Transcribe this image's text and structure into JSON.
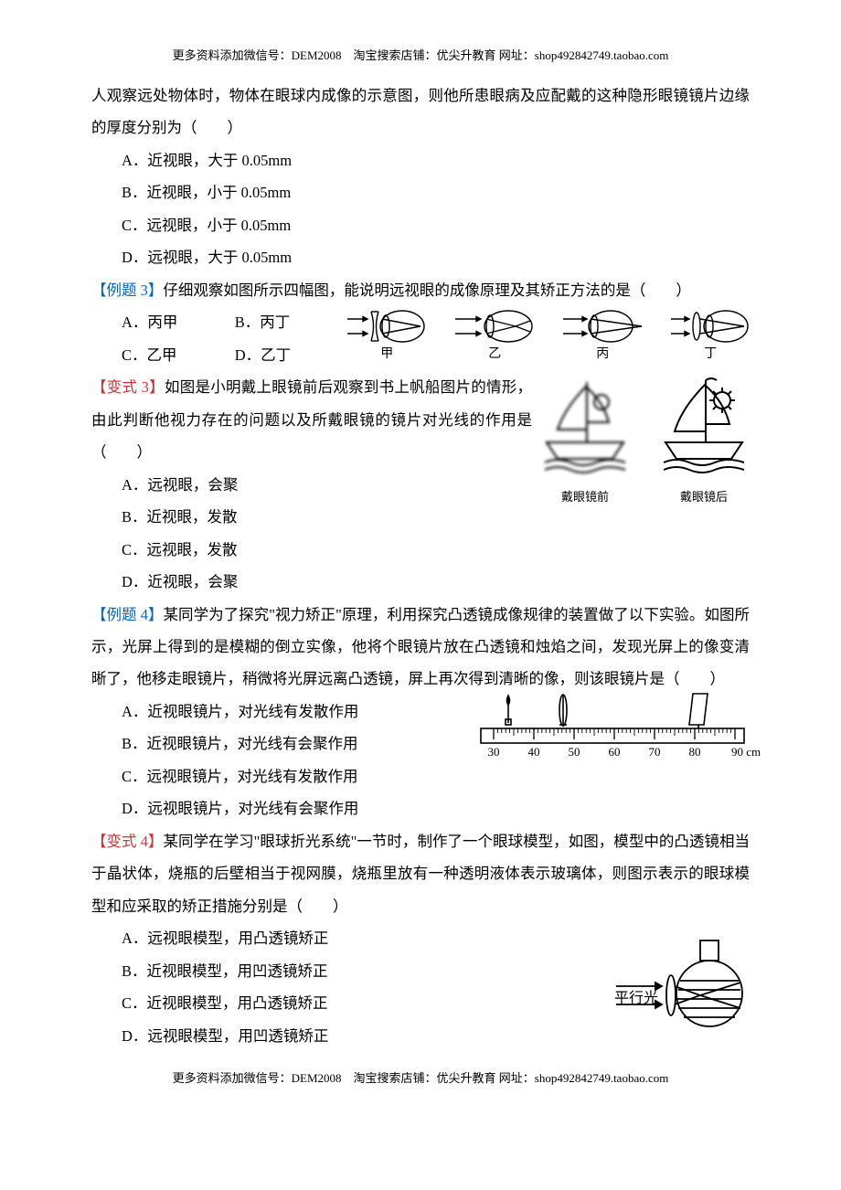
{
  "header": "更多资料添加微信号：DEM2008　淘宝搜索店铺：优尖升教育  网址：shop492842749.taobao.com",
  "footer": "更多资料添加微信号：DEM2008　淘宝搜索店铺：优尖升教育  网址：shop492842749.taobao.com",
  "intro_cont": "人观察远处物体时，物体在眼球内成像的示意图，则他所患眼病及应配戴的这种隐形眼镜镜片边缘的厚度分别为（　　）",
  "q0": {
    "A": "A．近视眼，大于 0.05mm",
    "B": "B．近视眼，小于 0.05mm",
    "C": "C．远视眼，小于 0.05mm",
    "D": "D．远视眼，大于 0.05mm"
  },
  "ex3": {
    "tag": "【例题 3】",
    "text": "仔细观察如图所示四幅图，能说明远视眼的成像原理及其矫正方法的是（　　）",
    "A": "A．丙甲",
    "B": "B．丙丁",
    "C": "C．乙甲",
    "D": "D．乙丁",
    "labels": {
      "jia": "甲",
      "yi": "乙",
      "bing": "丙",
      "ding": "丁"
    }
  },
  "var3": {
    "tag": "【变式 3】",
    "text": "如图是小明戴上眼镜前后观察到书上帆船图片的情形，由此判断他视力存在的问题以及所戴眼镜的镜片对光线的作用是（　　）",
    "A": "A．远视眼，会聚",
    "B": "B．近视眼，发散",
    "C": "C．远视眼，发散",
    "D": "D．近视眼，会聚",
    "before": "戴眼镜前",
    "after": "戴眼镜后"
  },
  "ex4": {
    "tag": "【例题 4】",
    "text": "某同学为了探究\"视力矫正\"原理，利用探究凸透镜成像规律的装置做了以下实验。如图所示，光屏上得到的是模糊的倒立实像，他将个眼镜片放在凸透镜和烛焰之间，发现光屏上的像变清晰了，他移走眼镜片，稍微将光屏远离凸透镜，屏上再次得到清晰的像，则该眼镜片是（　　）",
    "A": "A．近视眼镜片，对光线有发散作用",
    "B": "B．近视眼镜片，对光线有会聚作用",
    "C": "C．远视眼镜片，对光线有发散作用",
    "D": "D．远视眼镜片，对光线有会聚作用",
    "ruler": [
      "30",
      "40",
      "50",
      "60",
      "70",
      "80",
      "90 cm"
    ]
  },
  "var4": {
    "tag": "【变式 4】",
    "text": "某同学在学习\"眼球折光系统\"一节时，制作了一个眼球模型，如图，模型中的凸透镜相当于晶状体，烧瓶的后壁相当于视网膜，烧瓶里放有一种透明液体表示玻璃体，则图示表示的眼球模型和应采取的矫正措施分别是（　　）",
    "A": "A．远视眼模型，用凸透镜矫正",
    "B": "B．近视眼模型，用凹透镜矫正",
    "C": "C．近视眼模型，用凸透镜矫正",
    "D": "D．远视眼模型，用凹透镜矫正",
    "flask_label": "平行光"
  },
  "colors": {
    "blue": "#0066cc",
    "red": "#cc3333",
    "text": "#000000"
  }
}
